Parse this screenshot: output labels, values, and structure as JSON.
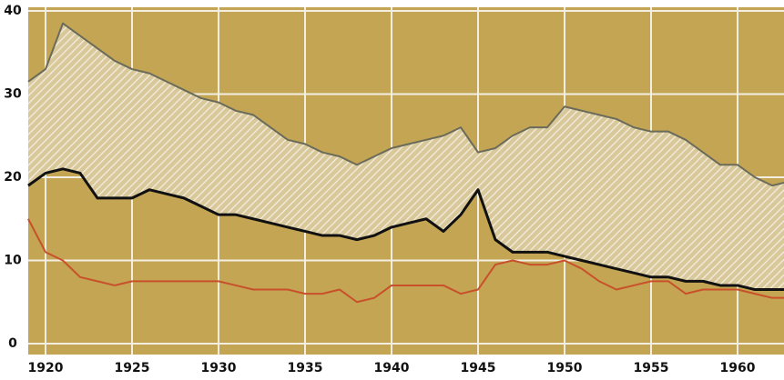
{
  "chart_data": {
    "type": "line",
    "x": [
      1919,
      1920,
      1921,
      1922,
      1923,
      1924,
      1925,
      1926,
      1927,
      1928,
      1929,
      1930,
      1931,
      1932,
      1933,
      1934,
      1935,
      1936,
      1937,
      1938,
      1939,
      1940,
      1941,
      1942,
      1943,
      1944,
      1945,
      1946,
      1947,
      1948,
      1949,
      1950,
      1951,
      1952,
      1953,
      1954,
      1955,
      1956,
      1957,
      1958,
      1959,
      1960,
      1961,
      1962,
      1963
    ],
    "series": [
      {
        "color": "#6b6b5a",
        "values": [
          31.5,
          33,
          38.5,
          37,
          35.5,
          34,
          33,
          32.5,
          31.5,
          30.5,
          29.5,
          29,
          28,
          27.5,
          26,
          24.5,
          24,
          23,
          22.5,
          21.5,
          22.5,
          23.5,
          24,
          24.5,
          25,
          26,
          23,
          23.5,
          25,
          26,
          26,
          28.5,
          28,
          27.5,
          27,
          26,
          25.5,
          25.5,
          24.5,
          23,
          21.5,
          21.5,
          20,
          19,
          19.5
        ]
      },
      {
        "color": "#111111",
        "values": [
          19,
          20.5,
          21,
          20.5,
          17.5,
          17.5,
          17.5,
          18.5,
          18,
          17.5,
          16.5,
          15.5,
          15.5,
          15,
          14.5,
          14,
          13.5,
          13,
          13,
          12.5,
          13,
          14,
          14.5,
          15,
          13.5,
          15.5,
          18.5,
          12.5,
          11,
          11,
          11,
          10.5,
          10,
          9.5,
          9,
          8.5,
          8,
          8,
          7.5,
          7.5,
          7,
          7,
          6.5,
          6.5,
          6.5
        ]
      },
      {
        "color": "#c8502a",
        "values": [
          15,
          11,
          10,
          8,
          7.5,
          7,
          7.5,
          7.5,
          7.5,
          7.5,
          7.5,
          7.5,
          7,
          6.5,
          6.5,
          6.5,
          6,
          6,
          6.5,
          5,
          5.5,
          7,
          7,
          7,
          7,
          6,
          6.5,
          9.5,
          10,
          9.5,
          9.5,
          10,
          9,
          7.5,
          6.5,
          7,
          7.5,
          7.5,
          6,
          6.5,
          6.5,
          6.5,
          6,
          5.5,
          5.5
        ]
      }
    ],
    "background": "#c4a554",
    "hatch_between": [
      0,
      1
    ],
    "xlim": [
      1919,
      1963
    ],
    "xticks": [
      1920,
      1925,
      1930,
      1935,
      1940,
      1945,
      1950,
      1955,
      1960
    ],
    "ylim": [
      0,
      40
    ],
    "yticks": [
      0,
      10,
      20,
      30,
      40
    ],
    "grid": true
  }
}
